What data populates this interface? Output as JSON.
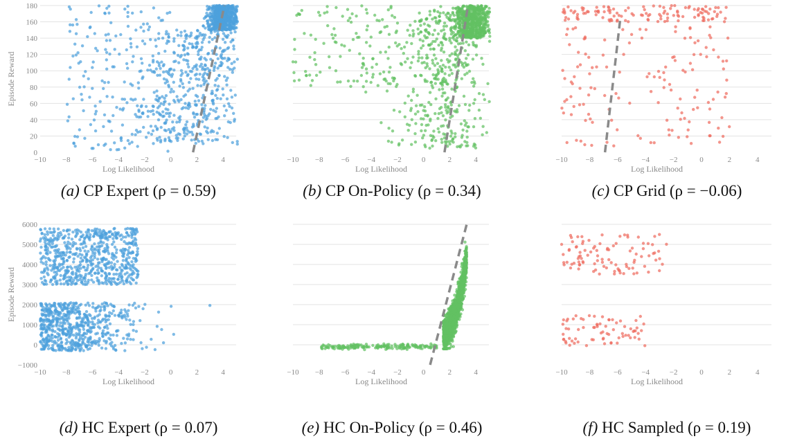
{
  "colors": {
    "blue": "#4ea1dc",
    "green": "#63c163",
    "red": "#ef6c5f",
    "trend": "#8a8a8a",
    "grid": "#e3e3e3"
  },
  "chart_data": [
    {
      "id": "a",
      "type": "scatter",
      "color": "blue",
      "caption": {
        "letter": "(a)",
        "text": "CP Expert (ρ = 0.59)"
      },
      "xlabel": "Log Likelihood",
      "ylabel": "Episode Reward",
      "xlim": [
        -10,
        5
      ],
      "ylim": [
        0,
        180
      ],
      "xticks": [
        -10,
        -8,
        -6,
        -4,
        -2,
        0,
        2,
        4
      ],
      "yticks": [
        0,
        20,
        40,
        60,
        80,
        100,
        120,
        140,
        160,
        180
      ],
      "trend": [
        [
          1.7,
          0
        ],
        [
          4.1,
          180
        ]
      ],
      "gen": {
        "n": 1300,
        "seed": 11,
        "mode": "cp_expert"
      }
    },
    {
      "id": "b",
      "type": "scatter",
      "color": "green",
      "caption": {
        "letter": "(b)",
        "text": "CP On-Policy (ρ = 0.34)"
      },
      "xlabel": "Log Likelihood",
      "ylabel": "",
      "xlim": [
        -10,
        5
      ],
      "ylim": [
        0,
        180
      ],
      "xticks": [
        -10,
        -8,
        -6,
        -4,
        -2,
        0,
        2,
        4
      ],
      "yticks": [],
      "trend": [
        [
          1.6,
          0
        ],
        [
          3.4,
          180
        ]
      ],
      "gen": {
        "n": 1200,
        "seed": 23,
        "mode": "cp_onpolicy"
      }
    },
    {
      "id": "c",
      "type": "scatter",
      "color": "red",
      "caption": {
        "letter": "(c)",
        "text": "CP Grid (ρ = −0.06)"
      },
      "xlabel": "Log Likelihood",
      "ylabel": "",
      "xlim": [
        -10,
        5
      ],
      "ylim": [
        0,
        180
      ],
      "xticks": [
        -10,
        -8,
        -6,
        -4,
        -2,
        0,
        2,
        4
      ],
      "yticks": [],
      "trend": [
        [
          -6.9,
          0
        ],
        [
          -5.8,
          165
        ]
      ],
      "gen": {
        "n": 260,
        "seed": 37,
        "mode": "cp_grid"
      }
    },
    {
      "id": "d",
      "type": "scatter",
      "color": "blue",
      "caption": {
        "letter": "(d)",
        "text": "HC Expert (ρ = 0.07)"
      },
      "xlabel": "Log Likelihood",
      "ylabel": "Episode Reward",
      "xlim": [
        -10,
        5
      ],
      "ylim": [
        -1000,
        6000
      ],
      "xticks": [
        -10,
        -8,
        -6,
        -4,
        -2,
        0,
        2,
        4
      ],
      "yticks": [
        -1000,
        0,
        1000,
        2000,
        3000,
        4000,
        5000,
        6000
      ],
      "trend": null,
      "gen": {
        "n": 1300,
        "seed": 41,
        "mode": "hc_expert"
      }
    },
    {
      "id": "e",
      "type": "scatter",
      "color": "green",
      "caption": {
        "letter": "(e)",
        "text": "HC On-Policy (ρ = 0.46)"
      },
      "xlabel": "Log Likelihood",
      "ylabel": "",
      "xlim": [
        -10,
        5
      ],
      "ylim": [
        -1000,
        6000
      ],
      "xticks": [
        -10,
        -8,
        -6,
        -4,
        -2,
        0,
        2,
        4
      ],
      "yticks": [],
      "trend": [
        [
          0.5,
          -1000
        ],
        [
          3.3,
          6000
        ]
      ],
      "gen": {
        "n": 1800,
        "seed": 53,
        "mode": "hc_onpolicy"
      }
    },
    {
      "id": "f",
      "type": "scatter",
      "color": "red",
      "caption": {
        "letter": "(f)",
        "text": "HC Sampled (ρ = 0.19)"
      },
      "xlabel": "Log Likelihood",
      "ylabel": "",
      "xlim": [
        -10,
        5
      ],
      "ylim": [
        -1000,
        6000
      ],
      "xticks": [
        -10,
        -8,
        -6,
        -4,
        -2,
        0,
        2,
        4
      ],
      "yticks": [],
      "trend": null,
      "gen": {
        "n": 170,
        "seed": 67,
        "mode": "hc_sampled"
      }
    }
  ]
}
